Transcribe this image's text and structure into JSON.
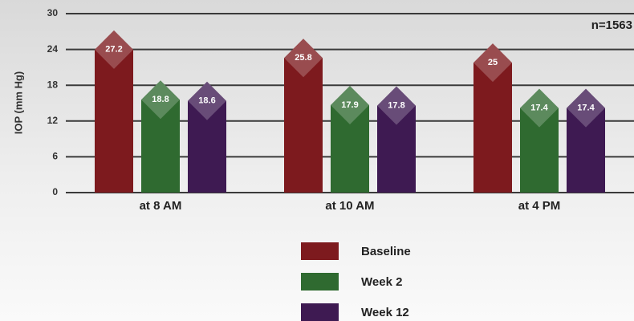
{
  "chart_data": {
    "type": "bar",
    "y_label": "IOP (mm Hg)",
    "annotation": "n=1563",
    "categories": [
      "at 8 AM",
      "at 10 AM",
      "at 4 PM"
    ],
    "series": [
      {
        "name": "Baseline",
        "color": "#7d1a1e",
        "values": [
          27.2,
          25.8,
          25
        ]
      },
      {
        "name": "Week 2",
        "color": "#2f6a30",
        "values": [
          18.8,
          17.9,
          17.4
        ]
      },
      {
        "name": "Week 12",
        "color": "#3e1a52",
        "values": [
          18.6,
          17.8,
          17.4
        ]
      }
    ],
    "ylim": [
      0,
      30
    ],
    "yticks": [
      0,
      6,
      12,
      18,
      24,
      30
    ],
    "grid": true
  }
}
